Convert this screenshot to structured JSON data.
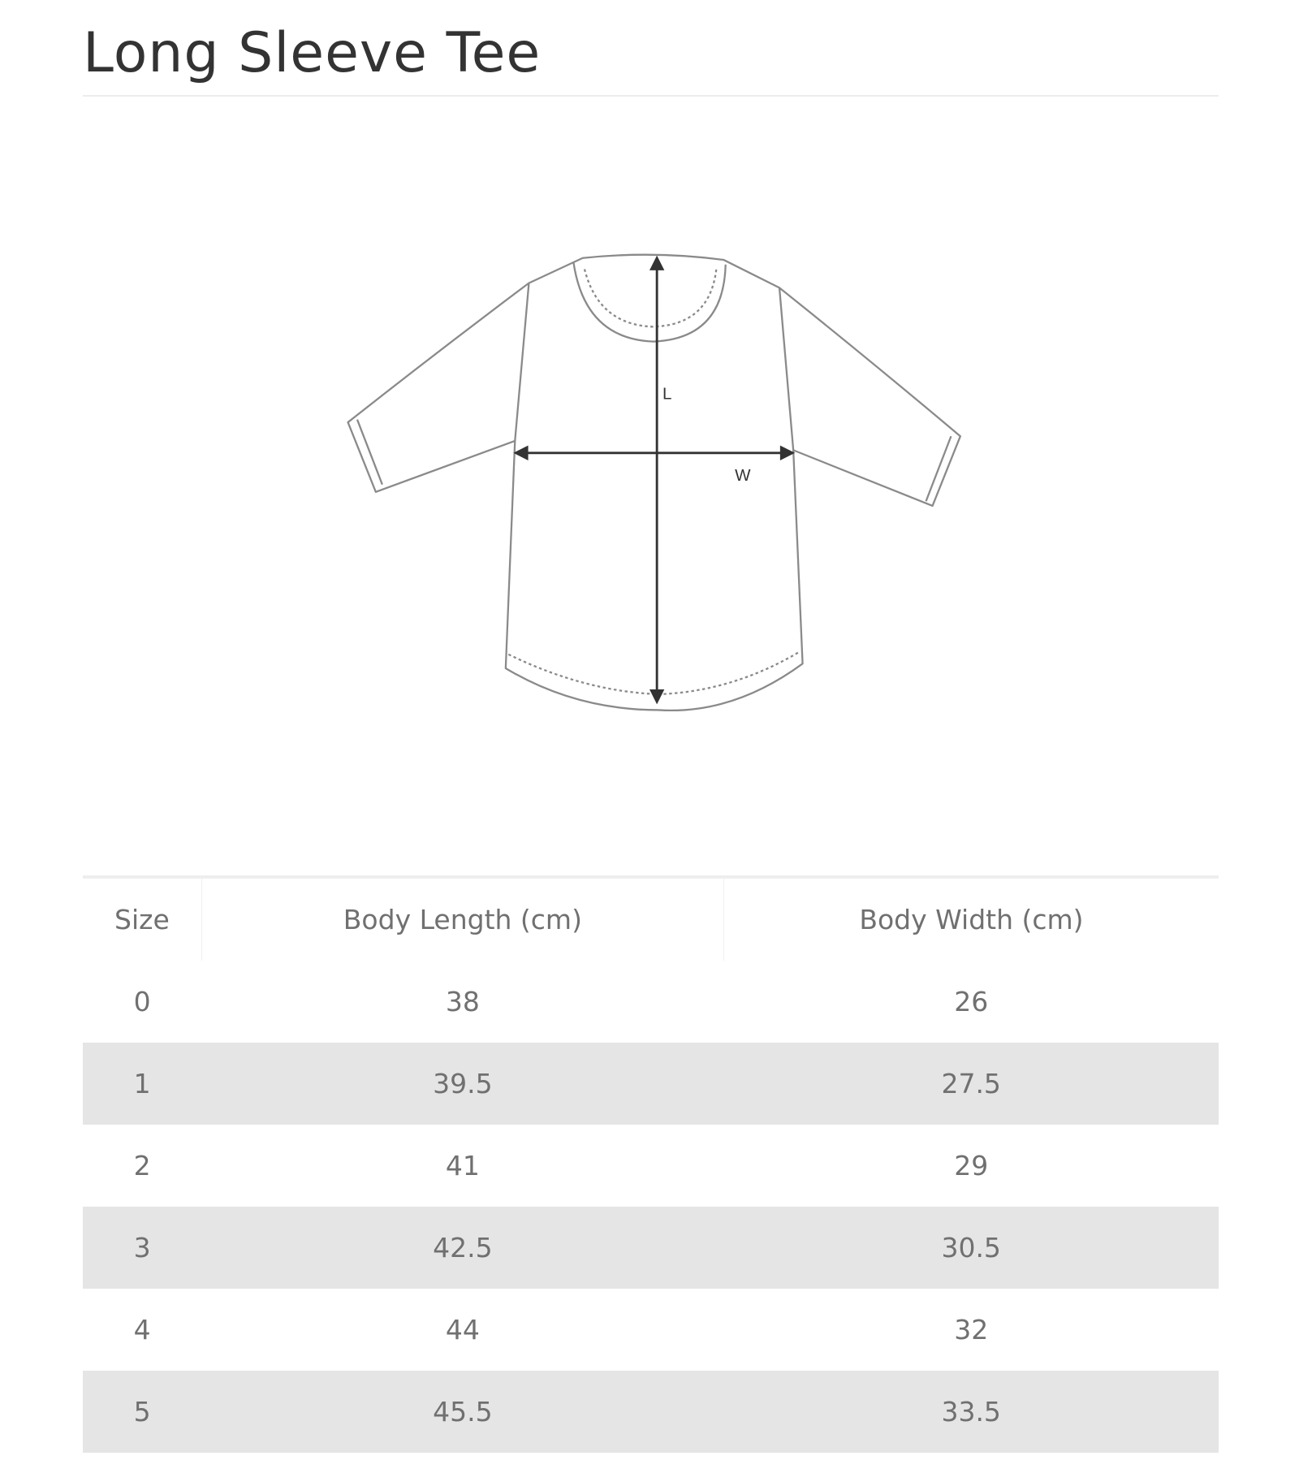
{
  "title": "Long Sleeve Tee",
  "diagram": {
    "length_label": "L",
    "width_label": "W"
  },
  "table": {
    "headers": [
      "Size",
      "Body Length (cm)",
      "Body Width (cm)"
    ],
    "rows": [
      [
        "0",
        "38",
        "26"
      ],
      [
        "1",
        "39.5",
        "27.5"
      ],
      [
        "2",
        "41",
        "29"
      ],
      [
        "3",
        "42.5",
        "30.5"
      ],
      [
        "4",
        "44",
        "32"
      ],
      [
        "5",
        "45.5",
        "33.5"
      ]
    ],
    "shaded_row_color": "#e5e5e5"
  }
}
